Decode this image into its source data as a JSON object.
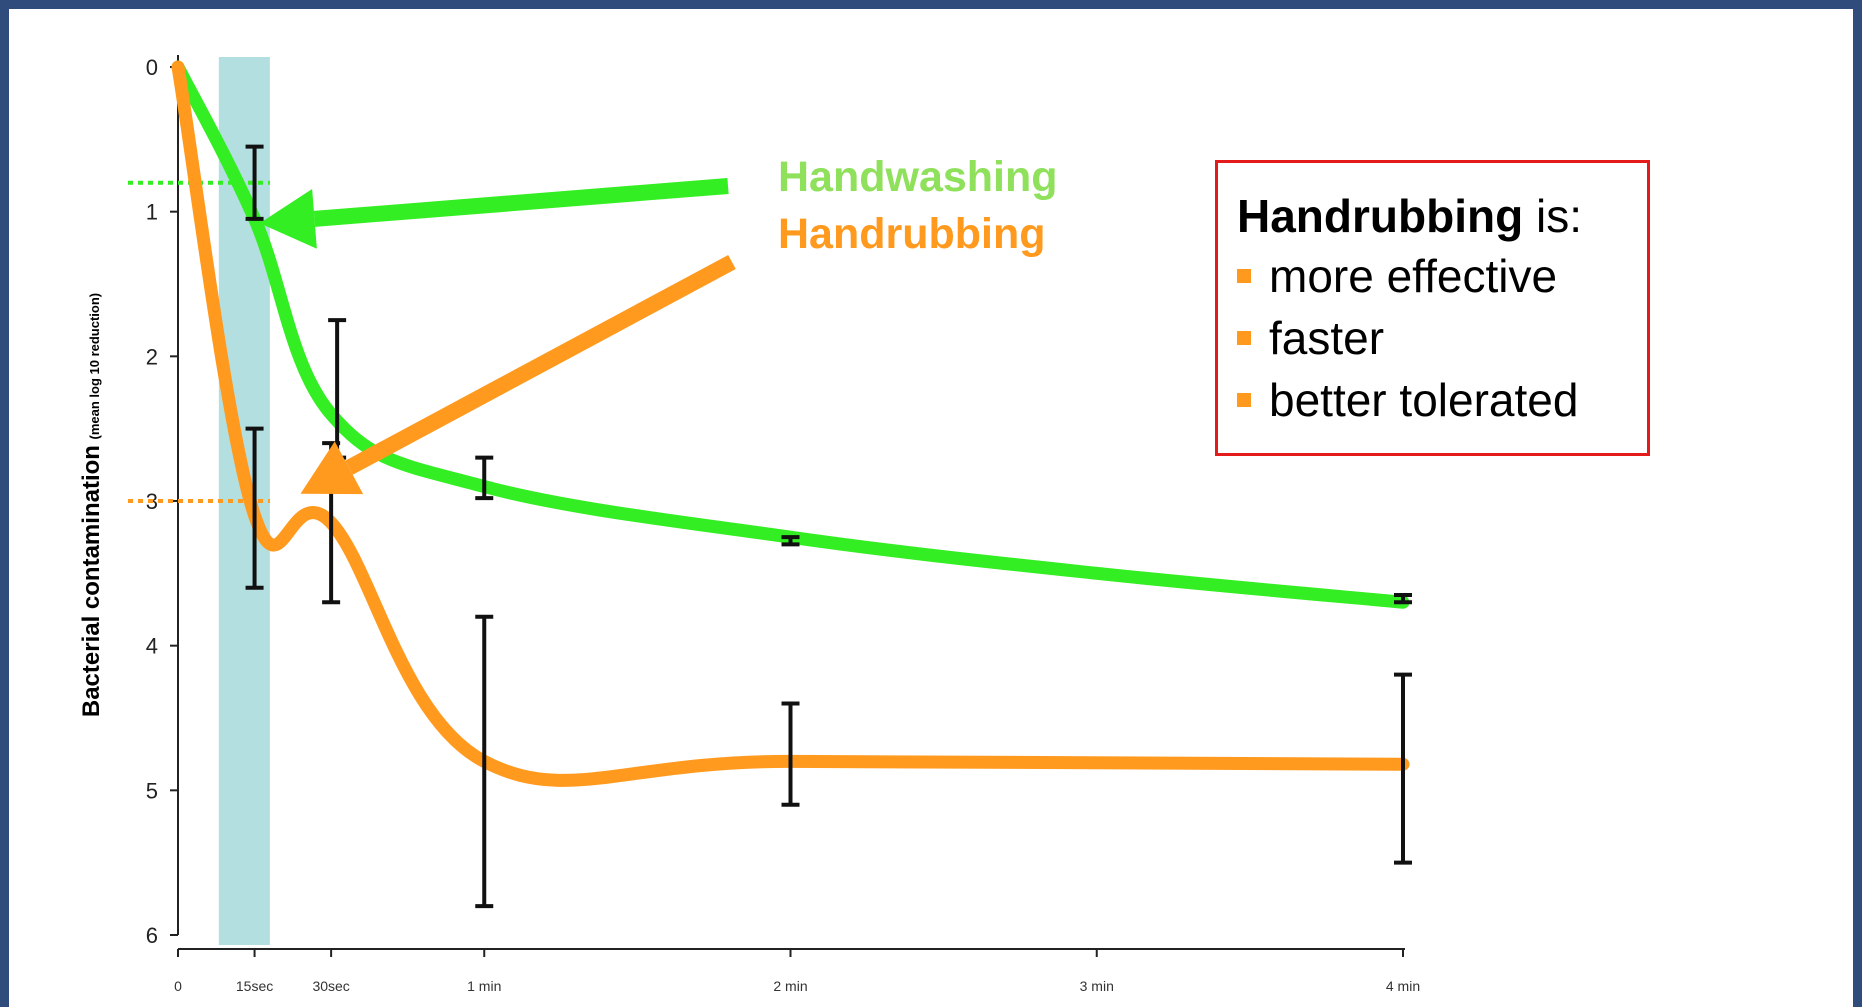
{
  "chart_data": {
    "type": "line",
    "x_tick_labels": [
      "0",
      "15sec",
      "30sec",
      "1 min",
      "2 min",
      "3 min",
      "4 min"
    ],
    "x_tick_positions_sec": [
      0,
      15,
      30,
      60,
      120,
      180,
      240
    ],
    "y_ticks": [
      0,
      1,
      2,
      3,
      4,
      5,
      6
    ],
    "ylim": [
      0,
      6
    ],
    "y_inverted": true,
    "ylabel_main": "Bacterial contamination",
    "ylabel_unit": "(mean log 10 reduction)",
    "highlight_band_sec": [
      8,
      18
    ],
    "series": [
      {
        "name": "Handwashing",
        "color": "#33ee22",
        "x": [
          0,
          15,
          30,
          60,
          120,
          180,
          240
        ],
        "y": [
          0,
          1.05,
          2.4,
          2.9,
          3.25,
          3.5,
          3.7
        ],
        "error_x": [
          15,
          30,
          60,
          120,
          240
        ],
        "error_low": [
          0.55,
          1.75,
          2.7,
          3.25,
          3.65
        ],
        "error_high": [
          1.05,
          2.7,
          2.98,
          3.3,
          3.7
        ]
      },
      {
        "name": "Handrubbing",
        "color": "#ff9a1f",
        "x": [
          0,
          15,
          30,
          60,
          120,
          240
        ],
        "y": [
          0,
          3.1,
          3.15,
          4.8,
          4.8,
          4.82
        ],
        "error_x": [
          15,
          30,
          60,
          120,
          240
        ],
        "error_low": [
          2.5,
          2.6,
          3.8,
          4.4,
          4.2
        ],
        "error_high": [
          3.6,
          3.7,
          5.8,
          5.1,
          5.5
        ]
      }
    ],
    "reference_lines": [
      {
        "series": "Handwashing",
        "y": 0.8
      },
      {
        "series": "Handrubbing",
        "y": 3.0
      }
    ],
    "legend": [
      "Handwashing",
      "Handrubbing"
    ]
  },
  "callout": {
    "title_bold": "Handrubbing",
    "title_rest": " is:",
    "items": [
      "more effective",
      "faster",
      "better tolerated"
    ]
  }
}
